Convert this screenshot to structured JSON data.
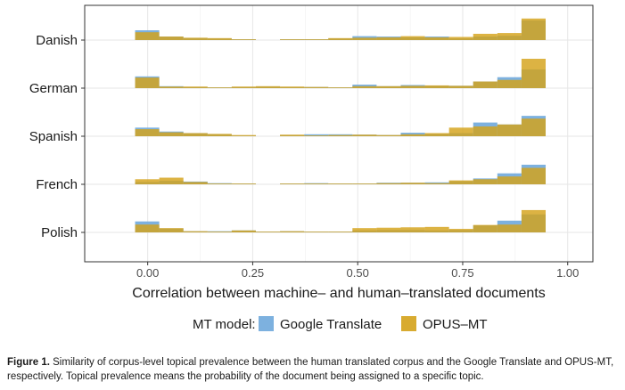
{
  "chart_data": {
    "type": "bar",
    "subtype": "stacked-category-histogram",
    "xlabel": "Correlation between machine– and human–translated documents",
    "xlim": [
      -0.15,
      1.06
    ],
    "xticks": [
      0.0,
      0.25,
      0.5,
      0.75,
      1.0
    ],
    "xtick_labels": [
      "0.00",
      "0.25",
      "0.50",
      "0.75",
      "1.00"
    ],
    "bin_start": -0.03,
    "bin_width": 0.0575,
    "grid": true,
    "legend_position": "bottom",
    "legend_title": "MT model:",
    "categories": [
      "Danish",
      "German",
      "Spanish",
      "French",
      "Polish"
    ],
    "series": [
      {
        "name": "Google Translate",
        "color": "#6fa8dc",
        "values": {
          "Danish": [
            0.25,
            0.09,
            0.05,
            0.04,
            0.02,
            0,
            0.02,
            0.02,
            0.04,
            0.1,
            0.09,
            0.07,
            0.09,
            0.04,
            0.09,
            0.11,
            0.5
          ],
          "German": [
            0.3,
            0.05,
            0.03,
            0.02,
            0.03,
            0.04,
            0.03,
            0.03,
            0.02,
            0.09,
            0.05,
            0.08,
            0.06,
            0.06,
            0.17,
            0.28,
            0.48
          ],
          "Spanish": [
            0.22,
            0.12,
            0.08,
            0.05,
            0.02,
            0,
            0.03,
            0.05,
            0.05,
            0.04,
            0.03,
            0.09,
            0.06,
            0.08,
            0.35,
            0.3,
            0.52
          ],
          "French": [
            0.06,
            0.09,
            0.07,
            0.03,
            0.02,
            0,
            0.02,
            0.03,
            0.02,
            0.02,
            0.04,
            0.04,
            0.05,
            0.08,
            0.15,
            0.28,
            0.5
          ],
          "Polish": [
            0.28,
            0.1,
            0.03,
            0.03,
            0.05,
            0.02,
            0.03,
            0.02,
            0.02,
            0.05,
            0.06,
            0.06,
            0.05,
            0.06,
            0.18,
            0.3,
            0.46
          ]
        }
      },
      {
        "name": "OPUS–MT",
        "color": "#d4a21a",
        "values": {
          "Danish": [
            0.2,
            0.09,
            0.06,
            0.05,
            0.02,
            0,
            0.02,
            0.02,
            0.05,
            0.06,
            0.07,
            0.1,
            0.07,
            0.08,
            0.16,
            0.18,
            0.55
          ],
          "German": [
            0.27,
            0.04,
            0.04,
            0.02,
            0.04,
            0.05,
            0.04,
            0.03,
            0.02,
            0.05,
            0.05,
            0.06,
            0.07,
            0.06,
            0.17,
            0.21,
            0.75
          ],
          "Spanish": [
            0.18,
            0.1,
            0.08,
            0.06,
            0.03,
            0,
            0.04,
            0.02,
            0.03,
            0.04,
            0.03,
            0.05,
            0.08,
            0.22,
            0.25,
            0.3,
            0.45
          ],
          "French": [
            0.13,
            0.17,
            0.06,
            0.02,
            0.02,
            0,
            0.02,
            0.02,
            0.02,
            0.02,
            0.03,
            0.04,
            0.03,
            0.1,
            0.13,
            0.2,
            0.42
          ],
          "Polish": [
            0.2,
            0.11,
            0.03,
            0.02,
            0.05,
            0.02,
            0.03,
            0.02,
            0.02,
            0.11,
            0.12,
            0.13,
            0.14,
            0.09,
            0.19,
            0.2,
            0.57
          ]
        }
      }
    ]
  },
  "caption": {
    "label": "Figure 1.",
    "text": "Similarity of corpus-level topical prevalence between the human translated corpus and the Google Translate and OPUS-MT, respectively. Topical prevalence means the probability of the document being assigned to a specific topic."
  }
}
